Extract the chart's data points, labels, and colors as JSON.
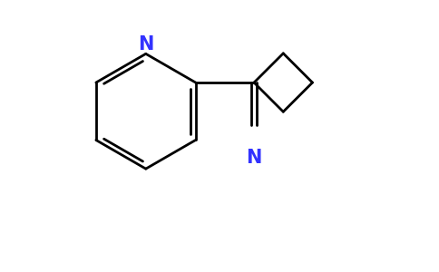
{
  "bg_color": "#ffffff",
  "bond_color": "#000000",
  "nitrogen_color": "#3333ff",
  "line_width": 2.0,
  "figsize": [
    4.84,
    3.0
  ],
  "dpi": 100,
  "xlim": [
    0,
    9.68
  ],
  "ylim": [
    0,
    6.0
  ]
}
